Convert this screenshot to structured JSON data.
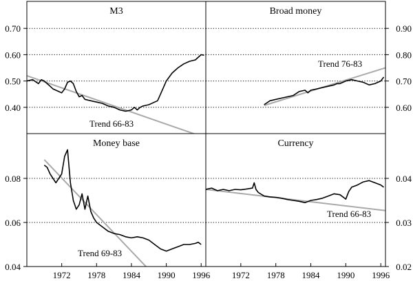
{
  "chart_data": {
    "type": "line",
    "x_ticks": [
      1972,
      1978,
      1984,
      1990,
      1996
    ],
    "panels": [
      {
        "id": "m3",
        "title": "M3",
        "axis_side": "left",
        "yticks": [
          "0.40",
          "0.50",
          "0.60",
          "0.70"
        ],
        "ylim": [
          0.3,
          0.8
        ],
        "trend_label": "Trend 66-83",
        "trend": [
          [
            1966,
            0.52
          ],
          [
            1996,
            0.29
          ]
        ],
        "series": [
          [
            1966,
            0.5
          ],
          [
            1967,
            0.505
          ],
          [
            1968,
            0.49
          ],
          [
            1968.5,
            0.505
          ],
          [
            1969,
            0.5
          ],
          [
            1969.5,
            0.49
          ],
          [
            1970,
            0.48
          ],
          [
            1970.5,
            0.47
          ],
          [
            1971,
            0.465
          ],
          [
            1971.5,
            0.46
          ],
          [
            1972,
            0.455
          ],
          [
            1972.5,
            0.47
          ],
          [
            1973,
            0.495
          ],
          [
            1973.5,
            0.5
          ],
          [
            1974,
            0.49
          ],
          [
            1974.5,
            0.46
          ],
          [
            1975,
            0.44
          ],
          [
            1975.5,
            0.445
          ],
          [
            1976,
            0.43
          ],
          [
            1977,
            0.425
          ],
          [
            1978,
            0.42
          ],
          [
            1979,
            0.415
          ],
          [
            1980,
            0.405
          ],
          [
            1981,
            0.4
          ],
          [
            1982,
            0.39
          ],
          [
            1983,
            0.385
          ],
          [
            1984,
            0.39
          ],
          [
            1984.5,
            0.4
          ],
          [
            1985,
            0.39
          ],
          [
            1985.5,
            0.4
          ],
          [
            1986,
            0.405
          ],
          [
            1987,
            0.41
          ],
          [
            1988,
            0.42
          ],
          [
            1988.5,
            0.425
          ],
          [
            1989,
            0.45
          ],
          [
            1990,
            0.5
          ],
          [
            1991,
            0.53
          ],
          [
            1992,
            0.55
          ],
          [
            1993,
            0.565
          ],
          [
            1994,
            0.575
          ],
          [
            1995,
            0.58
          ],
          [
            1996,
            0.6
          ],
          [
            1996.5,
            0.598
          ]
        ]
      },
      {
        "id": "broad",
        "title": "Broad money",
        "axis_side": "right",
        "yticks": [
          "0.60",
          "0.70",
          "0.80",
          "0.90"
        ],
        "ylim": [
          0.5,
          1.0
        ],
        "trend_label": "Trend 76-83",
        "trend": [
          [
            1976,
            0.607
          ],
          [
            1996.8,
            0.75
          ]
        ],
        "series": [
          [
            1976,
            0.61
          ],
          [
            1977,
            0.625
          ],
          [
            1978,
            0.63
          ],
          [
            1979,
            0.635
          ],
          [
            1980,
            0.64
          ],
          [
            1981,
            0.645
          ],
          [
            1982,
            0.66
          ],
          [
            1983,
            0.665
          ],
          [
            1983.5,
            0.655
          ],
          [
            1984,
            0.665
          ],
          [
            1985,
            0.67
          ],
          [
            1986,
            0.675
          ],
          [
            1987,
            0.68
          ],
          [
            1988,
            0.685
          ],
          [
            1988.5,
            0.69
          ],
          [
            1989,
            0.69
          ],
          [
            1990,
            0.7
          ],
          [
            1991,
            0.705
          ],
          [
            1992,
            0.7
          ],
          [
            1993,
            0.695
          ],
          [
            1994,
            0.685
          ],
          [
            1995,
            0.69
          ],
          [
            1996,
            0.7
          ],
          [
            1996.5,
            0.715
          ]
        ]
      },
      {
        "id": "base",
        "title": "Money base",
        "axis_side": "left",
        "yticks": [
          "0.04",
          "0.06",
          "0.08"
        ],
        "ylim": [
          0.04,
          0.1
        ],
        "trend_label": "Trend 69-83",
        "trend": [
          [
            1969,
            0.0885
          ],
          [
            1986.5,
            0.04
          ]
        ],
        "series": [
          [
            1969,
            0.086
          ],
          [
            1969.5,
            0.085
          ],
          [
            1970,
            0.082
          ],
          [
            1970.5,
            0.08
          ],
          [
            1971,
            0.078
          ],
          [
            1971.5,
            0.08
          ],
          [
            1972,
            0.082
          ],
          [
            1972.5,
            0.09
          ],
          [
            1973,
            0.093
          ],
          [
            1973.5,
            0.078
          ],
          [
            1974,
            0.07
          ],
          [
            1974.5,
            0.066
          ],
          [
            1975,
            0.068
          ],
          [
            1975.5,
            0.073
          ],
          [
            1976,
            0.066
          ],
          [
            1976.5,
            0.072
          ],
          [
            1977,
            0.065
          ],
          [
            1977.5,
            0.062
          ],
          [
            1978,
            0.06
          ],
          [
            1979,
            0.058
          ],
          [
            1980,
            0.056
          ],
          [
            1981,
            0.055
          ],
          [
            1982,
            0.0545
          ],
          [
            1983,
            0.0535
          ],
          [
            1984,
            0.053
          ],
          [
            1985,
            0.0535
          ],
          [
            1986,
            0.053
          ],
          [
            1987,
            0.052
          ],
          [
            1988,
            0.05
          ],
          [
            1989,
            0.048
          ],
          [
            1990,
            0.047
          ],
          [
            1991,
            0.048
          ],
          [
            1992,
            0.049
          ],
          [
            1993,
            0.05
          ],
          [
            1994,
            0.05
          ],
          [
            1995,
            0.0505
          ],
          [
            1995.5,
            0.051
          ],
          [
            1996,
            0.05
          ]
        ]
      },
      {
        "id": "currency",
        "title": "Currency",
        "axis_side": "right",
        "yticks": [
          "0.02",
          "0.03",
          "0.04"
        ],
        "ylim": [
          0.02,
          0.05
        ],
        "trend_label": "Trend 66-83",
        "trend": [
          [
            1966,
            0.0375
          ],
          [
            1996.8,
            0.0327
          ]
        ],
        "series": [
          [
            1966,
            0.0375
          ],
          [
            1967,
            0.0378
          ],
          [
            1968,
            0.0372
          ],
          [
            1969,
            0.0375
          ],
          [
            1970,
            0.0372
          ],
          [
            1971,
            0.0375
          ],
          [
            1972,
            0.0374
          ],
          [
            1973,
            0.0376
          ],
          [
            1974,
            0.0378
          ],
          [
            1974.3,
            0.039
          ],
          [
            1974.6,
            0.0375
          ],
          [
            1975,
            0.0368
          ],
          [
            1976,
            0.036
          ],
          [
            1977,
            0.0358
          ],
          [
            1978,
            0.0357
          ],
          [
            1979,
            0.0355
          ],
          [
            1980,
            0.0352
          ],
          [
            1981,
            0.035
          ],
          [
            1982,
            0.0348
          ],
          [
            1983,
            0.0345
          ],
          [
            1984,
            0.035
          ],
          [
            1985,
            0.0352
          ],
          [
            1986,
            0.0355
          ],
          [
            1987,
            0.036
          ],
          [
            1988,
            0.0365
          ],
          [
            1989,
            0.0363
          ],
          [
            1990,
            0.0353
          ],
          [
            1990.5,
            0.037
          ],
          [
            1991,
            0.038
          ],
          [
            1992,
            0.0385
          ],
          [
            1993,
            0.0392
          ],
          [
            1994,
            0.0395
          ],
          [
            1995,
            0.039
          ],
          [
            1996,
            0.0385
          ],
          [
            1996.5,
            0.038
          ]
        ]
      }
    ]
  }
}
